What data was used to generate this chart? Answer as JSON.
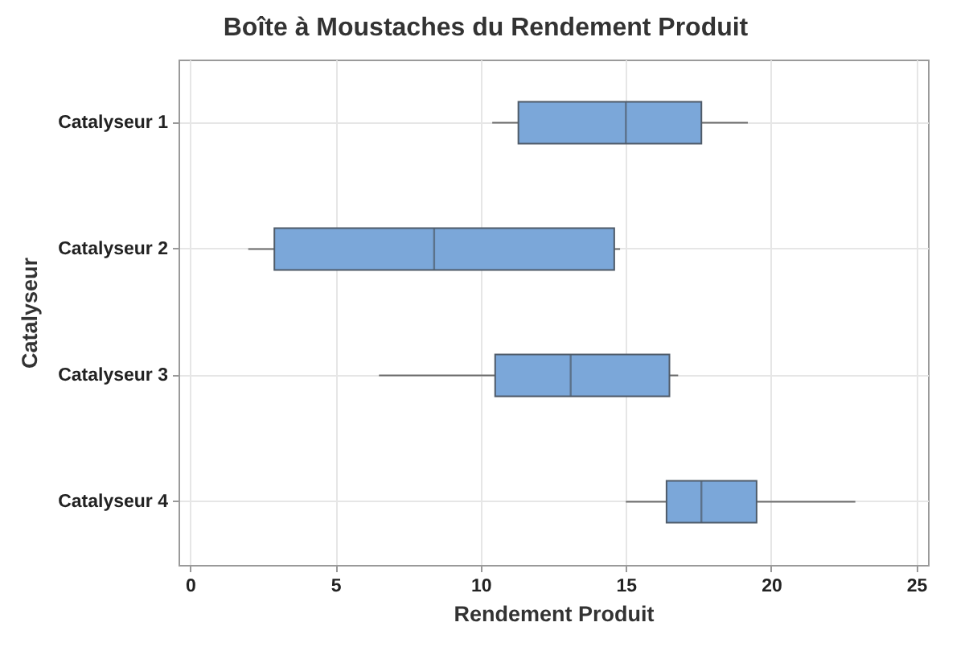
{
  "chart_data": {
    "type": "box",
    "title": "Boîte à Moustaches du Rendement Produit",
    "xlabel": "Rendement Produit",
    "ylabel": "Catalyseur",
    "orientation": "horizontal",
    "color": "#7ba7d9",
    "categories": [
      "Catalyseur 1",
      "Catalyseur 2",
      "Catalyseur 3",
      "Catalyseur 4"
    ],
    "boxes": [
      {
        "low": 10.4,
        "q1": 11.3,
        "median": 15.0,
        "q3": 17.6,
        "high": 19.2
      },
      {
        "low": 2.0,
        "q1": 2.9,
        "median": 8.4,
        "q3": 14.6,
        "high": 14.8
      },
      {
        "low": 6.5,
        "q1": 10.5,
        "median": 13.1,
        "q3": 16.5,
        "high": 16.8
      },
      {
        "low": 15.0,
        "q1": 16.4,
        "median": 17.6,
        "q3": 19.5,
        "high": 22.9
      }
    ],
    "xlim": [
      -0.4,
      25.4
    ],
    "xticks": [
      0,
      5,
      10,
      15,
      20,
      25
    ],
    "grid": true
  }
}
